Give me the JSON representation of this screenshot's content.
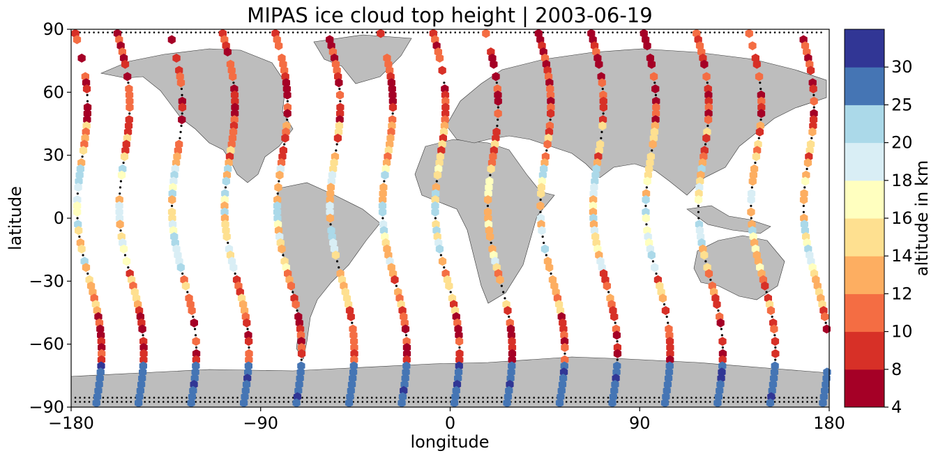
{
  "chart_data": {
    "type": "scatter",
    "title": "MIPAS ice cloud top height | 2003-06-19",
    "xlabel": "longitude",
    "ylabel": "latitude",
    "xlim": [
      -180,
      180
    ],
    "ylim": [
      -90,
      90
    ],
    "xticks": [
      -180,
      -90,
      0,
      90,
      180
    ],
    "xtick_labels": [
      "−180",
      "−90",
      "0",
      "90",
      "180"
    ],
    "yticks": [
      -90,
      -60,
      -30,
      0,
      30,
      60,
      90
    ],
    "ytick_labels": [
      "−90",
      "−60",
      "−30",
      "0",
      "30",
      "60",
      "90"
    ],
    "colorbar": {
      "label": "altitude in km",
      "bounds": [
        4,
        8,
        10,
        12,
        14,
        16,
        18,
        20,
        25,
        30
      ],
      "bound_labels": [
        "4",
        "8",
        "10",
        "12",
        "14",
        "16",
        "18",
        "20",
        "25",
        "30"
      ],
      "colors": [
        "#a50026",
        "#d73027",
        "#f46d43",
        "#fdae61",
        "#fee090",
        "#ffffbf",
        "#d9eef5",
        "#abd9e9",
        "#4575b4",
        "#313695"
      ]
    },
    "land_color": "#bdbdbd",
    "no_cloud_marker_color": "#000000",
    "tracks": [
      {
        "lon_start": -178,
        "lat_start": 88,
        "lon_end": -168,
        "lat_end": -88
      },
      {
        "lon_start": -158,
        "lat_start": 88,
        "lon_end": -148,
        "lat_end": -88
      },
      {
        "lon_start": -133,
        "lat_start": 88,
        "lon_end": -123,
        "lat_end": -88
      },
      {
        "lon_start": -108,
        "lat_start": 88,
        "lon_end": -98,
        "lat_end": -88
      },
      {
        "lon_start": -83,
        "lat_start": 88,
        "lon_end": -73,
        "lat_end": -88
      },
      {
        "lon_start": -58,
        "lat_start": 88,
        "lon_end": -48,
        "lat_end": -88
      },
      {
        "lon_start": -33,
        "lat_start": 88,
        "lon_end": -23,
        "lat_end": -88
      },
      {
        "lon_start": -8,
        "lat_start": 88,
        "lon_end": 2,
        "lat_end": -88
      },
      {
        "lon_start": 17,
        "lat_start": 88,
        "lon_end": 27,
        "lat_end": -88
      },
      {
        "lon_start": 42,
        "lat_start": 88,
        "lon_end": 52,
        "lat_end": -88
      },
      {
        "lon_start": 67,
        "lat_start": 88,
        "lon_end": 77,
        "lat_end": -88
      },
      {
        "lon_start": 92,
        "lat_start": 88,
        "lon_end": 102,
        "lat_end": -88
      },
      {
        "lon_start": 117,
        "lat_start": 88,
        "lon_end": 127,
        "lat_end": -88
      },
      {
        "lon_start": 142,
        "lat_start": 88,
        "lon_end": 152,
        "lat_end": -88
      },
      {
        "lon_start": 167,
        "lat_start": 88,
        "lon_end": 177,
        "lat_end": -88
      }
    ]
  }
}
